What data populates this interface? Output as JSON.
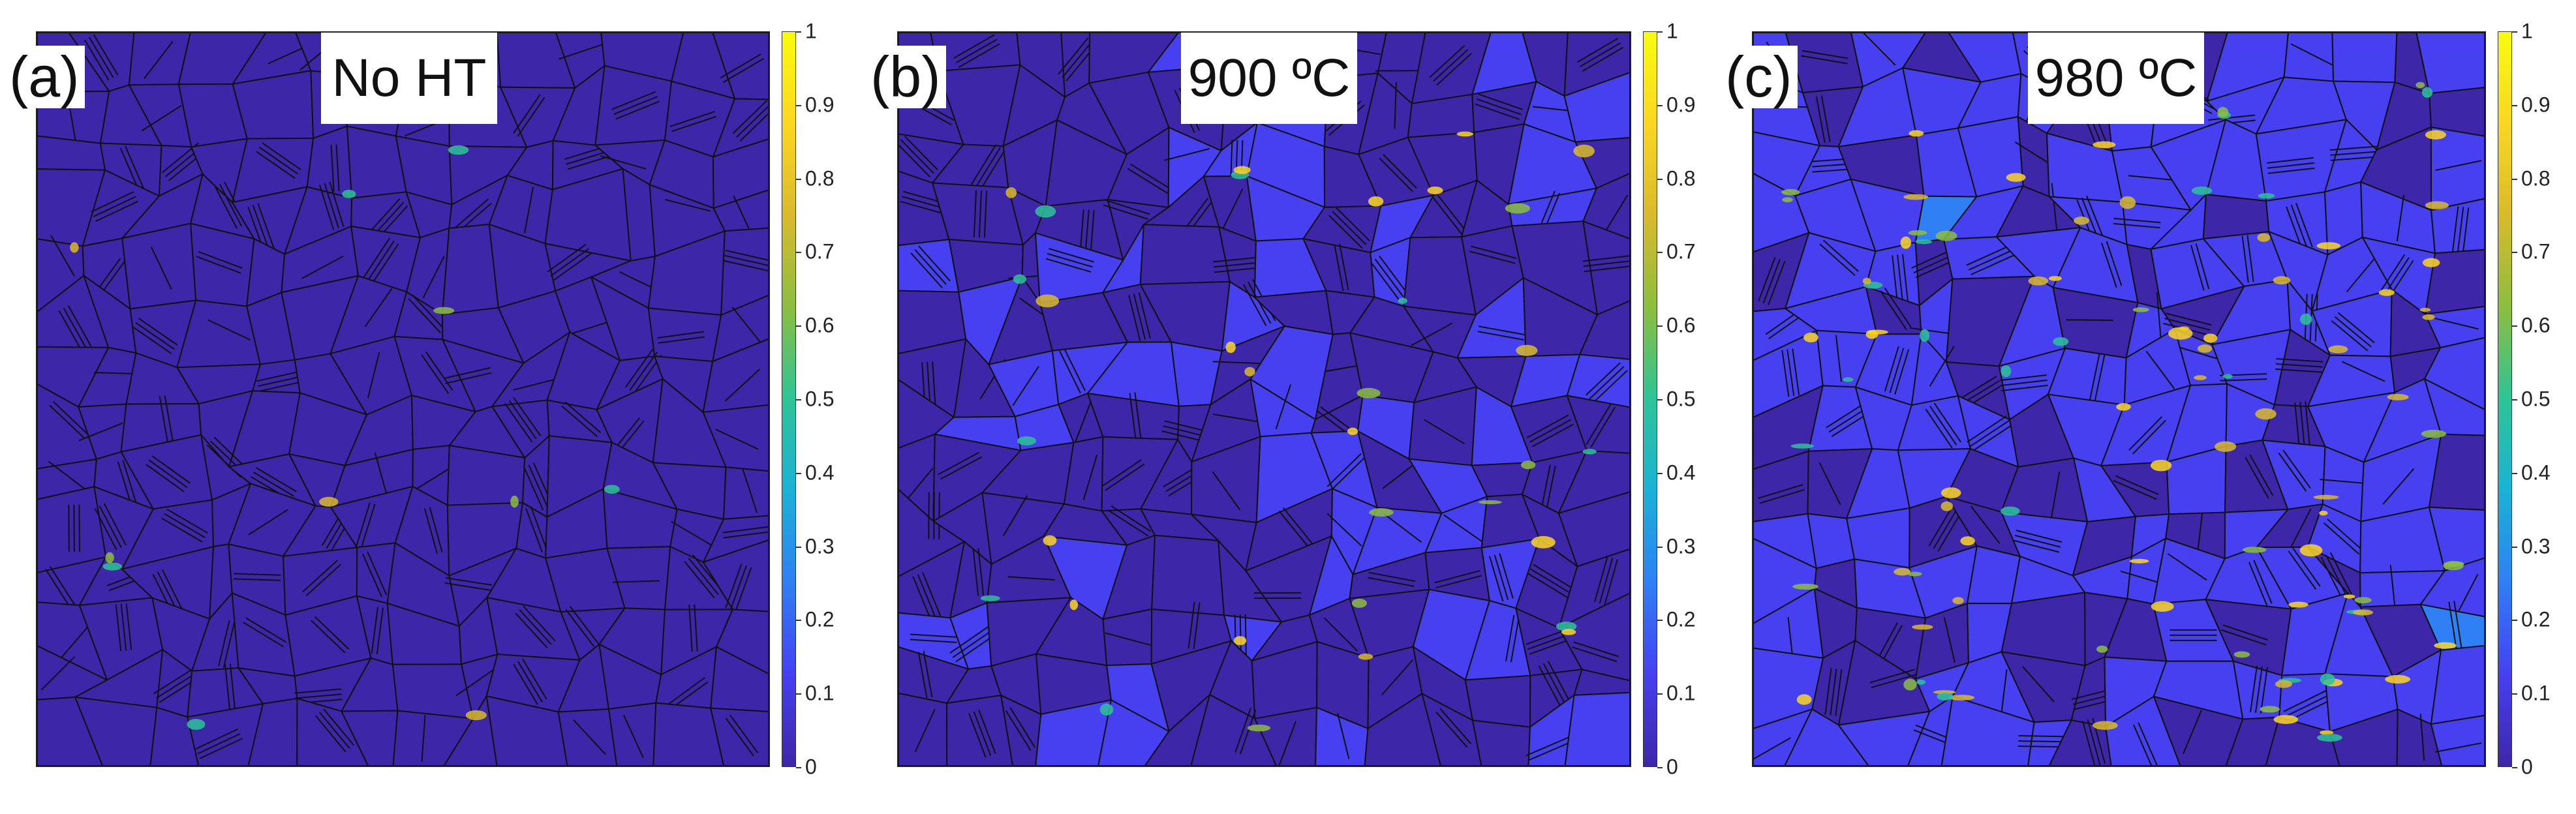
{
  "colors": {
    "background_low": "#3c2fd0",
    "boundary": "#111111",
    "colormap": [
      "#3e26a8",
      "#4640f0",
      "#2f7ff5",
      "#1ab2d5",
      "#2dc497",
      "#8cbe3f",
      "#d9ba2c",
      "#fbd623",
      "#f9fb0e"
    ]
  },
  "panels": [
    {
      "letter": "(a)",
      "condition": "No HT",
      "colorbar": {
        "min": 0,
        "max": 1,
        "ticks": [
          "1",
          "0.9",
          "0.8",
          "0.7",
          "0.6",
          "0.5",
          "0.4",
          "0.3",
          "0.2",
          "0.1",
          "0"
        ]
      },
      "highlight_level": 0.05
    },
    {
      "letter": "(b)",
      "condition": "900 ºC",
      "colorbar": {
        "min": 0,
        "max": 1,
        "ticks": [
          "1",
          "0.9",
          "0.8",
          "0.7",
          "0.6",
          "0.5",
          "0.4",
          "0.3",
          "0.2",
          "0.1",
          "0"
        ]
      },
      "highlight_level": 0.15
    },
    {
      "letter": "(c)",
      "condition": "980 ºC",
      "colorbar": {
        "min": 0,
        "max": 1,
        "ticks": [
          "1",
          "0.9",
          "0.8",
          "0.7",
          "0.6",
          "0.5",
          "0.4",
          "0.3",
          "0.2",
          "0.1",
          "0"
        ]
      },
      "highlight_level": 0.45
    }
  ]
}
